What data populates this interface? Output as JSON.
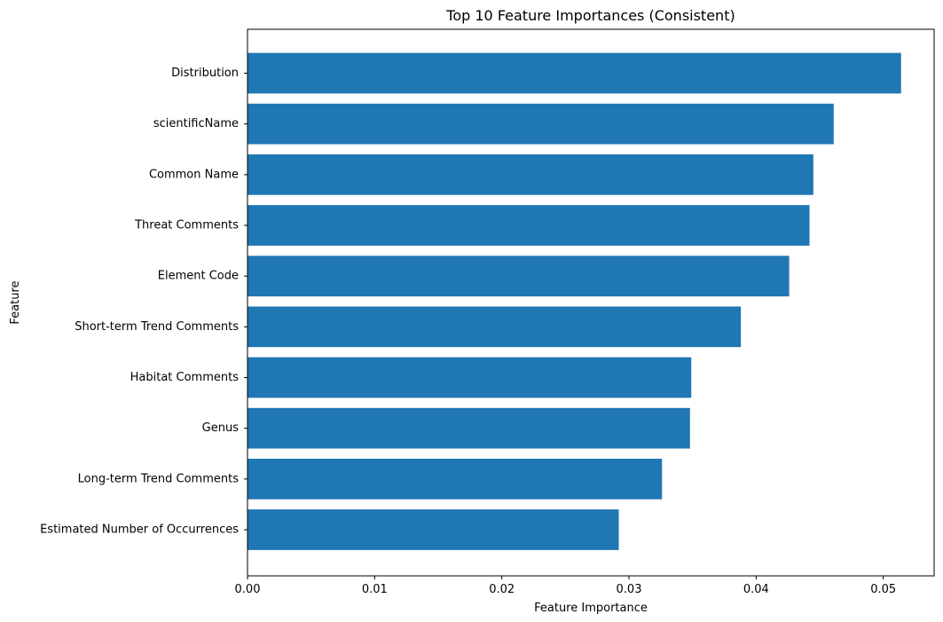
{
  "chart_data": {
    "type": "bar",
    "orientation": "horizontal",
    "title": "Top 10 Feature Importances (Consistent)",
    "xlabel": "Feature Importance",
    "ylabel": "Feature",
    "categories": [
      "Distribution",
      "scientificName",
      "Common Name",
      "Threat Comments",
      "Element Code",
      "Short-term Trend Comments",
      "Habitat Comments",
      "Genus",
      "Long-term Trend Comments",
      "Estimated Number of Occurrences"
    ],
    "values": [
      0.0514,
      0.0461,
      0.0445,
      0.0442,
      0.0426,
      0.0388,
      0.0349,
      0.0348,
      0.0326,
      0.0292
    ],
    "xlim": [
      0,
      0.054
    ],
    "xticks": [
      0.0,
      0.01,
      0.02,
      0.03,
      0.04,
      0.05
    ],
    "xtick_labels": [
      "0.00",
      "0.01",
      "0.02",
      "0.03",
      "0.04",
      "0.05"
    ],
    "grid": false,
    "legend": "none",
    "bar_color": "#1f77b4"
  }
}
